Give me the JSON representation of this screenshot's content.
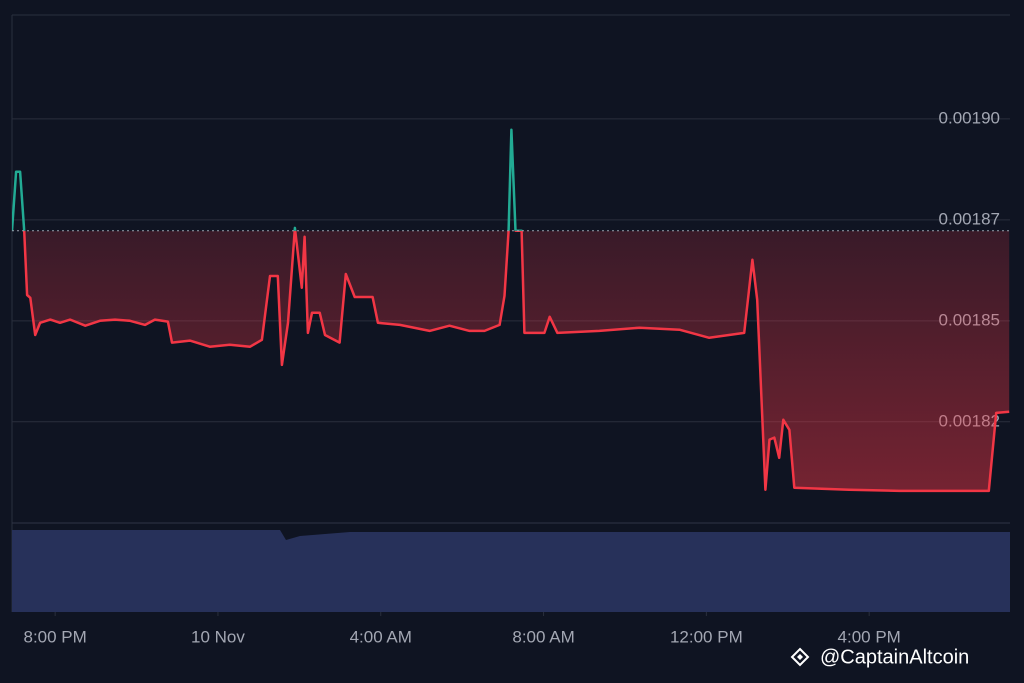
{
  "chart_data": {
    "type": "line",
    "x": [
      -5.06,
      -4.96,
      -4.86,
      -4.76,
      -4.69,
      -4.61,
      -4.49,
      -4.37,
      -4.12,
      -3.88,
      -3.63,
      -3.26,
      -2.9,
      -2.53,
      -2.16,
      -1.79,
      -1.55,
      -1.23,
      -1.13,
      -0.69,
      -0.2,
      0.29,
      0.79,
      1.08,
      1.28,
      1.47,
      1.57,
      1.72,
      1.89,
      2.06,
      2.13,
      2.21,
      2.31,
      2.5,
      2.63,
      2.99,
      3.14,
      3.36,
      3.8,
      3.93,
      4.47,
      5.2,
      5.69,
      6.18,
      6.55,
      6.92,
      7.04,
      7.14,
      7.21,
      7.31,
      7.46,
      7.53,
      8.02,
      8.15,
      8.34,
      9.37,
      10.36,
      11.34,
      12.07,
      12.93,
      13.13,
      13.25,
      13.45,
      13.55,
      13.67,
      13.79,
      13.89,
      14.04,
      14.16,
      15.51,
      16.74,
      18.94,
      19.12,
      19.44
    ],
    "series": [
      {
        "color": "#f23645",
        "color_above": "#22ab94",
        "values": [
          0.0018723,
          0.0018869,
          0.0018869,
          0.0018723,
          0.0018564,
          0.0018557,
          0.0018465,
          0.0018495,
          0.0018503,
          0.0018495,
          0.0018503,
          0.0018488,
          0.00185,
          0.0018503,
          0.00185,
          0.001849,
          0.0018503,
          0.0018498,
          0.0018446,
          0.0018451,
          0.0018436,
          0.0018441,
          0.0018436,
          0.0018453,
          0.0018611,
          0.0018611,
          0.0018391,
          0.0018495,
          0.001873,
          0.0018582,
          0.0018708,
          0.001847,
          0.001852,
          0.001852,
          0.0018465,
          0.0018446,
          0.0018616,
          0.0018559,
          0.0018559,
          0.0018495,
          0.001849,
          0.0018475,
          0.0018488,
          0.0018475,
          0.0018475,
          0.001849,
          0.0018562,
          0.0018723,
          0.0018973,
          0.0018723,
          0.0018723,
          0.001847,
          0.001847,
          0.001851,
          0.001847,
          0.0018475,
          0.0018483,
          0.0018478,
          0.0018458,
          0.001847,
          0.0018651,
          0.0018552,
          0.0018082,
          0.0018206,
          0.0018211,
          0.0018161,
          0.0018255,
          0.001823,
          0.0018087,
          0.0018082,
          0.0018079,
          0.0018079,
          0.0018272,
          0.0018275
        ]
      }
    ],
    "baseline": 0.0018723,
    "xlim": [
      -5.06,
      19.46
    ],
    "xticks": [
      {
        "value": -4,
        "label": "8:00 PM"
      },
      {
        "value": 0,
        "label": "10 Nov"
      },
      {
        "value": 4,
        "label": "4:00 AM"
      },
      {
        "value": 8,
        "label": "8:00 AM"
      },
      {
        "value": 12,
        "label": "12:00 PM"
      },
      {
        "value": 16,
        "label": "4:00 PM"
      }
    ],
    "ylim": [
      0.0018002,
      0.0019257
    ],
    "yticks": [
      {
        "value": 0.0019,
        "label": "0.00190"
      },
      {
        "value": 0.001875,
        "label": "0.00187"
      },
      {
        "value": 0.00185,
        "label": "0.00185"
      },
      {
        "value": 0.001825,
        "label": "0.00182"
      }
    ],
    "grid": true,
    "watermark": "@CaptainAltcoin"
  }
}
